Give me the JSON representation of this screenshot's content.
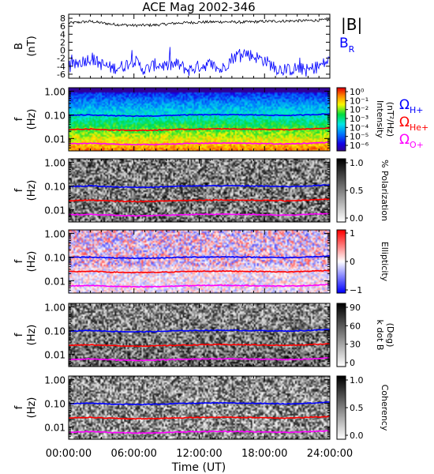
{
  "chart_data": {
    "type": "heatmap",
    "title": "ACE Mag 2002-346",
    "xlabel": "Time (UT)",
    "x_ticks": [
      "00:00:00",
      "06:00:00",
      "12:00:00",
      "18:00:00",
      "24:00:00"
    ],
    "x_range_hours": [
      0,
      24
    ],
    "panels": [
      {
        "type": "line",
        "ylabel": "B",
        "yunit": "(nT)",
        "ylim": [
          -7,
          9
        ],
        "y_ticks": [
          "8",
          "6",
          "4",
          "2",
          "0",
          "-2",
          "-4",
          "-6"
        ],
        "legend_placement": "right",
        "series": [
          {
            "name": "|B|",
            "color": "#000000",
            "x": [
              0,
              2,
              4,
              6,
              8,
              10,
              12,
              14,
              16,
              18,
              20,
              22,
              24
            ],
            "values": [
              6.8,
              7.2,
              6.5,
              6.2,
              6.3,
              6.8,
              7.0,
              7.1,
              7.0,
              7.2,
              7.3,
              7.4,
              7.6
            ]
          },
          {
            "name": "B",
            "name_subscript": "R",
            "color": "#0000ff",
            "x": [
              0,
              1,
              2,
              3,
              4,
              5,
              6,
              7,
              8,
              9,
              10,
              11,
              12,
              13,
              14,
              15,
              16,
              17,
              18,
              19,
              20,
              21,
              22,
              23,
              24
            ],
            "values": [
              -4.5,
              -3,
              -2,
              -3.5,
              -4.5,
              -4,
              -2.5,
              -5,
              -3.5,
              -4,
              -3.5,
              -5,
              -4,
              -3.5,
              -5,
              -2,
              -0.5,
              -1.5,
              -2.5,
              -4.5,
              -5,
              -4.5,
              -5,
              -4,
              -2.5
            ]
          }
        ]
      },
      {
        "type": "heatmap",
        "ylabel": "f",
        "yunit": "(Hz)",
        "ylim": [
          0.003,
          1.4
        ],
        "y_ticks": [
          "1.00",
          "0.10",
          "0.01"
        ],
        "y_scale": "log",
        "colorbar_label": "Intensity",
        "colorbar_unit": "(nT²/Hz)",
        "colorbar_ticks": [
          "10⁰",
          "10⁻¹",
          "10⁻²",
          "10⁻³",
          "10⁻⁴",
          "10⁻⁵",
          "10⁻⁶"
        ],
        "colorbar_range": [
          -6,
          0
        ],
        "legend_placement": "right",
        "legend": [
          {
            "symbol": "Ω",
            "subscript": "H+",
            "color": "#0000ff"
          },
          {
            "symbol": "Ω",
            "subscript": "He+",
            "color": "#ff0000"
          },
          {
            "symbol": "Ω",
            "subscript": "O+",
            "color": "#ff00ff"
          }
        ]
      },
      {
        "type": "heatmap",
        "ylabel": "f",
        "yunit": "(Hz)",
        "ylim": [
          0.003,
          1.4
        ],
        "y_ticks": [
          "1.00",
          "0.10",
          "0.01"
        ],
        "y_scale": "log",
        "colorbar_label": "% Polarization",
        "colorbar_ticks": [
          "1.0",
          "0.5",
          "0.0"
        ],
        "colorbar_range": [
          0,
          1
        ]
      },
      {
        "type": "heatmap",
        "ylabel": "f",
        "yunit": "(Hz)",
        "ylim": [
          0.003,
          1.4
        ],
        "y_ticks": [
          "1.00",
          "0.10",
          "0.01"
        ],
        "y_scale": "log",
        "colorbar_label": "Ellipticity",
        "colorbar_ticks": [
          "1",
          "0",
          "−1"
        ],
        "colorbar_range": [
          -1,
          1
        ]
      },
      {
        "type": "heatmap",
        "ylabel": "f",
        "yunit": "(Hz)",
        "ylim": [
          0.003,
          1.4
        ],
        "y_ticks": [
          "1.00",
          "0.10",
          "0.01"
        ],
        "y_scale": "log",
        "colorbar_label": "k dot B",
        "colorbar_unit": "(Deg)",
        "colorbar_ticks": [
          "90",
          "60",
          "30",
          "0"
        ],
        "colorbar_range": [
          0,
          90
        ]
      },
      {
        "type": "heatmap",
        "ylabel": "f",
        "yunit": "(Hz)",
        "ylim": [
          0.003,
          1.4
        ],
        "y_ticks": [
          "1.00",
          "0.10",
          "0.01"
        ],
        "y_scale": "log",
        "colorbar_label": "Coherency",
        "colorbar_ticks": [
          "1.0",
          "0.5",
          "0.0"
        ],
        "colorbar_range": [
          0,
          1
        ]
      }
    ],
    "gyrofrequency_lines_hz": {
      "x": [
        0,
        2,
        4,
        6,
        8,
        10,
        12,
        14,
        16,
        18,
        20,
        22,
        24
      ],
      "H+": [
        0.095,
        0.1,
        0.092,
        0.088,
        0.09,
        0.097,
        0.1,
        0.102,
        0.1,
        0.098,
        0.094,
        0.1,
        0.11
      ],
      "He+": [
        0.024,
        0.025,
        0.023,
        0.022,
        0.0225,
        0.024,
        0.025,
        0.0255,
        0.025,
        0.0245,
        0.0235,
        0.025,
        0.0275
      ],
      "O+": [
        0.006,
        0.0063,
        0.0058,
        0.0055,
        0.0056,
        0.006,
        0.0063,
        0.0064,
        0.0063,
        0.0061,
        0.0059,
        0.0063,
        0.0069
      ]
    },
    "grid": false
  }
}
